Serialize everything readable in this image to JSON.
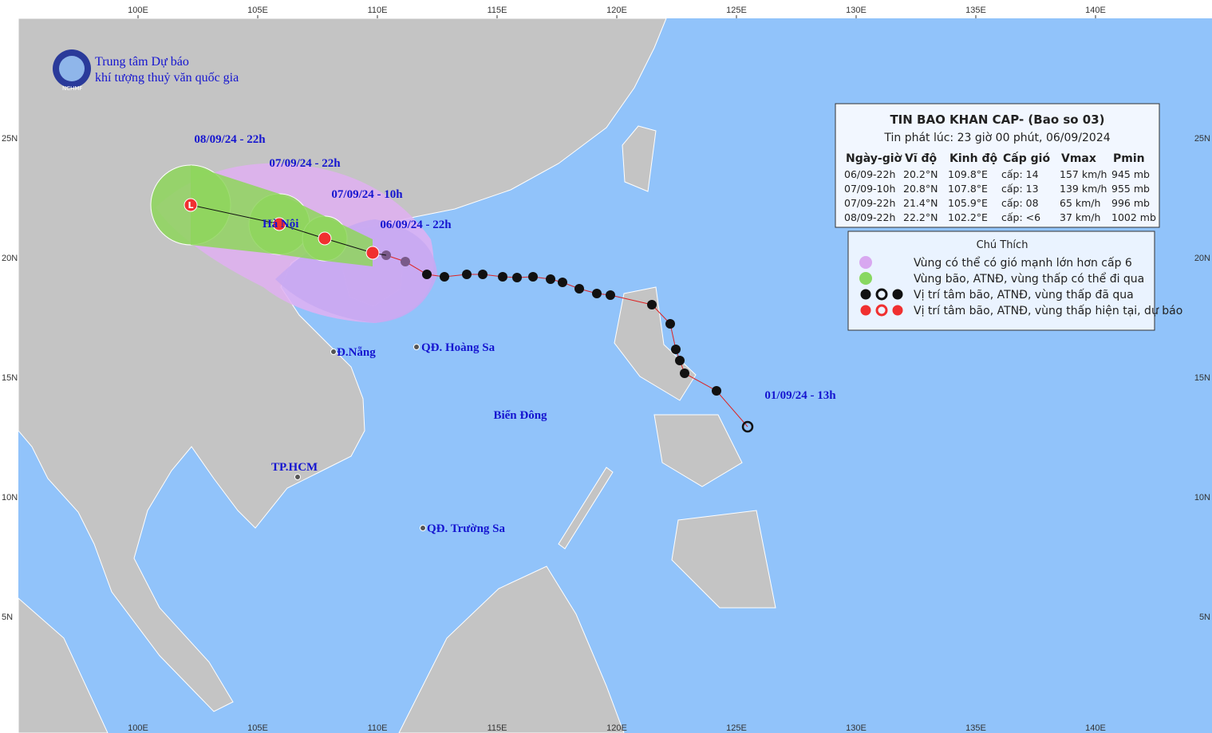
{
  "header": {
    "org_line1": "Trung tâm Dự báo",
    "org_line2": "khí tượng thuỷ văn quốc gia",
    "logo": "NCHMF"
  },
  "axes": {
    "lon_labels": [
      "100E",
      "105E",
      "110E",
      "115E",
      "120E",
      "125E",
      "130E",
      "135E",
      "140E"
    ],
    "lat_labels": [
      "25N",
      "20N",
      "15N",
      "10N",
      "5N"
    ]
  },
  "time_labels": [
    "08/09/24 - 22h",
    "07/09/24 - 22h",
    "07/09/24 - 10h",
    "06/09/24 - 22h",
    "01/09/24 - 13h"
  ],
  "places": {
    "hanoi": "Hà Nội",
    "danang": "Đ.Nẵng",
    "hoangsa": "QĐ. Hoàng Sa",
    "hcm": "TP.HCM",
    "truongsa": "QĐ. Trường Sa",
    "sea": "Biển Đông"
  },
  "bulletin": {
    "title": "TIN BAO KHAN CAP- (Bao so 03)",
    "issued": "Tin phát lúc: 23 giờ 00 phút, 06/09/2024",
    "columns": [
      "Ngày-giờ",
      "Vĩ độ",
      "Kinh độ",
      "Cấp gió",
      "Vmax",
      "Pmin"
    ],
    "rows": [
      [
        "06/09-22h",
        "20.2°N",
        "109.8°E",
        "cấp: 14",
        "157 km/h",
        "945 mb"
      ],
      [
        "07/09-10h",
        "20.8°N",
        "107.8°E",
        "cấp: 13",
        "139 km/h",
        "955 mb"
      ],
      [
        "07/09-22h",
        "21.4°N",
        "105.9°E",
        "cấp: 08",
        "65 km/h",
        "996 mb"
      ],
      [
        "08/09-22h",
        "22.2°N",
        "102.2°E",
        "cấp: <6",
        "37 km/h",
        "1002 mb"
      ]
    ]
  },
  "legend": {
    "title": "Chú Thích",
    "items": [
      "Vùng có thể có gió mạnh lớn hơn cấp 6",
      "Vùng bão, ATNĐ, vùng thấp có thể đi qua",
      "Vị trí tâm bão, ATNĐ, vùng thấp đã qua",
      "Vị trí tâm bão, ATNĐ, vùng thấp hiện tại, dự báo"
    ]
  }
}
